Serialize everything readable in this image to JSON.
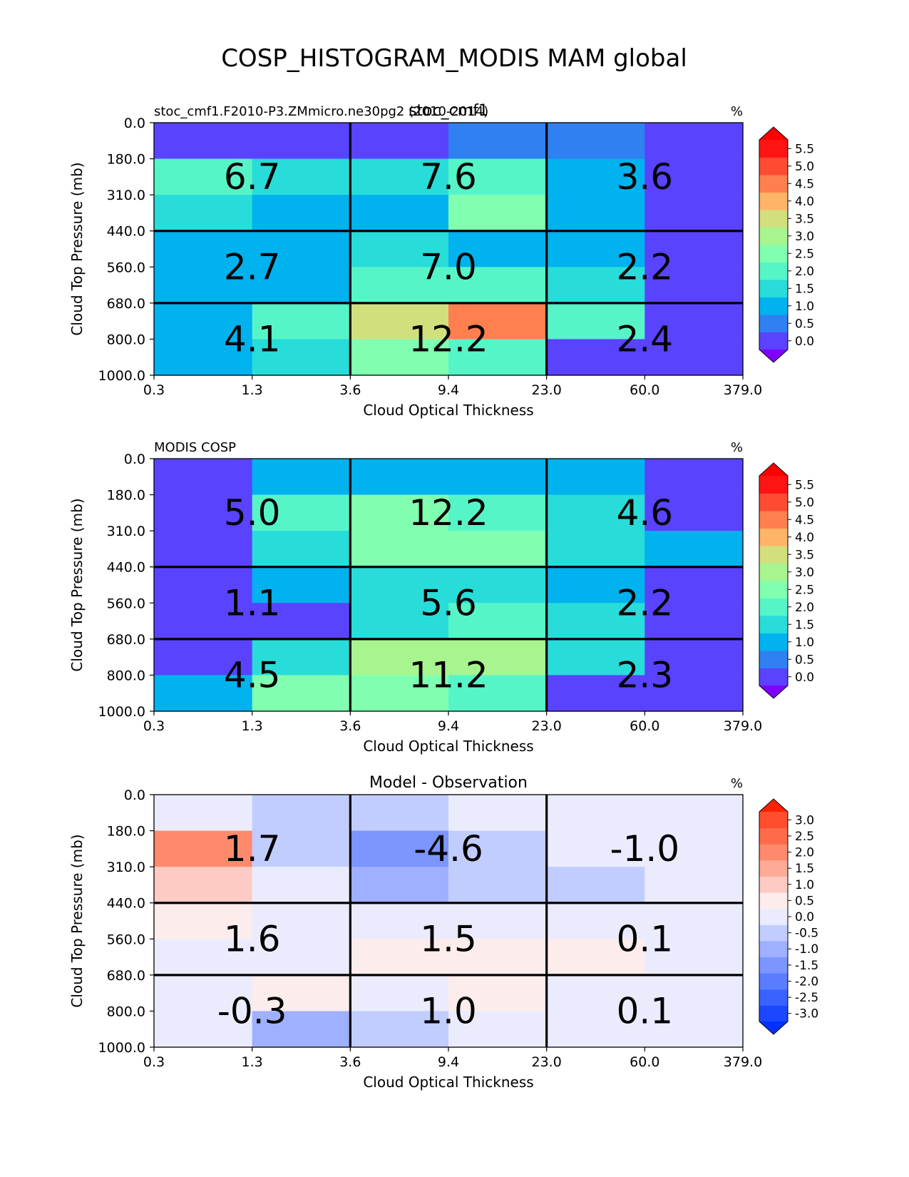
{
  "figure": {
    "title": "COSP_HISTOGRAM_MODIS MAM global"
  },
  "chart_data": [
    {
      "type": "heatmap",
      "title": "stoc_cmf1",
      "left_label": "stoc_cmf1.F2010-P3.ZMmicro.ne30pg2 (2010-2014)",
      "units": "%",
      "xlabel": "Cloud Optical Thickness",
      "ylabel": "Cloud Top Pressure (mb)",
      "x_ticks": [
        "0.3",
        "1.3",
        "3.6",
        "9.4",
        "23.0",
        "60.0",
        "379.0"
      ],
      "y_ticks": [
        "0.0",
        "180.0",
        "310.0",
        "440.0",
        "560.0",
        "680.0",
        "800.0",
        "1000.0"
      ],
      "values": [
        [
          0.0,
          0.0,
          0.0,
          0.7,
          0.6,
          0.0
        ],
        [
          2.1,
          1.4,
          1.3,
          1.9,
          1.2,
          0.0
        ],
        [
          1.4,
          0.8,
          1.2,
          2.3,
          0.8,
          0.0
        ],
        [
          0.8,
          0.8,
          1.3,
          1.2,
          0.8,
          0.0
        ],
        [
          0.8,
          0.8,
          1.9,
          2.2,
          1.3,
          0.0
        ],
        [
          0.8,
          1.8,
          3.7,
          4.3,
          1.9,
          0.0
        ],
        [
          0.8,
          1.3,
          2.3,
          1.8,
          0.0,
          0.0
        ]
      ],
      "box_values": [
        "6.7",
        "7.6",
        "3.6",
        "2.7",
        "7.0",
        "2.2",
        "4.1",
        "12.2",
        "2.4"
      ],
      "colorbar": {
        "ticks": [
          "0.0",
          "0.5",
          "1.0",
          "1.5",
          "2.0",
          "2.5",
          "3.0",
          "3.5",
          "4.0",
          "4.5",
          "5.0",
          "5.5"
        ],
        "levels": [
          -0.25,
          0.25,
          0.75,
          1.25,
          1.75,
          2.25,
          2.75,
          3.25,
          3.75,
          4.25,
          4.75,
          5.25,
          5.75
        ],
        "colors": [
          "#5a43ff",
          "#2f80f0",
          "#00b2ee",
          "#28dcd9",
          "#56f5c8",
          "#80ffb0",
          "#a8f590",
          "#d3df7d",
          "#ffb467",
          "#ff7f4e",
          "#ff4b33",
          "#ff1414"
        ],
        "under_color": "#8000ff",
        "over_color": "#ff0000"
      }
    },
    {
      "type": "heatmap",
      "title": "",
      "left_label": "MODIS COSP",
      "units": "%",
      "xlabel": "Cloud Optical Thickness",
      "ylabel": "Cloud Top Pressure (mb)",
      "x_ticks": [
        "0.3",
        "1.3",
        "3.6",
        "9.4",
        "23.0",
        "60.0",
        "379.0"
      ],
      "y_ticks": [
        "0.0",
        "180.0",
        "310.0",
        "440.0",
        "560.0",
        "680.0",
        "800.0",
        "1000.0"
      ],
      "values": [
        [
          0.0,
          0.8,
          0.8,
          0.8,
          0.8,
          0.0
        ],
        [
          0.0,
          2.1,
          2.5,
          2.1,
          1.4,
          0.0
        ],
        [
          0.0,
          1.4,
          2.6,
          2.6,
          1.4,
          0.8
        ],
        [
          0.0,
          0.8,
          1.3,
          1.3,
          0.8,
          0.0
        ],
        [
          0.0,
          0.0,
          1.3,
          1.8,
          1.3,
          0.0
        ],
        [
          0.0,
          1.3,
          3.2,
          3.2,
          1.4,
          0.0
        ],
        [
          0.8,
          2.6,
          2.5,
          2.0,
          0.0,
          0.0
        ]
      ],
      "box_values": [
        "5.0",
        "12.2",
        "4.6",
        "1.1",
        "5.6",
        "2.2",
        "4.5",
        "11.2",
        "2.3"
      ],
      "colorbar": {
        "ticks": [
          "0.0",
          "0.5",
          "1.0",
          "1.5",
          "2.0",
          "2.5",
          "3.0",
          "3.5",
          "4.0",
          "4.5",
          "5.0",
          "5.5"
        ],
        "levels": [
          -0.25,
          0.25,
          0.75,
          1.25,
          1.75,
          2.25,
          2.75,
          3.25,
          3.75,
          4.25,
          4.75,
          5.25,
          5.75
        ],
        "colors": [
          "#5a43ff",
          "#2f80f0",
          "#00b2ee",
          "#28dcd9",
          "#56f5c8",
          "#80ffb0",
          "#a8f590",
          "#d3df7d",
          "#ffb467",
          "#ff7f4e",
          "#ff4b33",
          "#ff1414"
        ],
        "under_color": "#8000ff",
        "over_color": "#ff0000"
      }
    },
    {
      "type": "heatmap",
      "title": "Model - Observation",
      "left_label": "",
      "units": "%",
      "xlabel": "Cloud Optical Thickness",
      "ylabel": "Cloud Top Pressure (mb)",
      "x_ticks": [
        "0.3",
        "1.3",
        "3.6",
        "9.4",
        "23.0",
        "60.0",
        "379.0"
      ],
      "y_ticks": [
        "0.0",
        "180.0",
        "310.0",
        "440.0",
        "560.0",
        "680.0",
        "800.0",
        "1000.0"
      ],
      "values": [
        [
          0.2,
          -0.6,
          -0.3,
          0.2,
          0.2,
          0.2
        ],
        [
          2.0,
          -0.6,
          -1.4,
          -0.6,
          -0.2,
          -0.2
        ],
        [
          1.2,
          -0.2,
          -1.1,
          -0.6,
          -0.6,
          -0.2
        ],
        [
          0.7,
          0.2,
          -0.2,
          -0.2,
          -0.2,
          -0.2
        ],
        [
          0.2,
          0.2,
          0.7,
          0.7,
          0.7,
          -0.2
        ],
        [
          0.2,
          0.7,
          0.2,
          0.7,
          0.2,
          -0.2
        ],
        [
          -0.2,
          -1.1,
          -0.6,
          0.2,
          0.2,
          -0.2
        ]
      ],
      "box_values": [
        "1.7",
        "-4.6",
        "-1.0",
        "1.6",
        "1.5",
        "0.1",
        "-0.3",
        "1.0",
        "0.1"
      ],
      "colorbar": {
        "ticks": [
          "-3.0",
          "-2.5",
          "-2.0",
          "-1.5",
          "-1.0",
          "-0.5",
          "0.0",
          "0.5",
          "1.0",
          "1.5",
          "2.0",
          "2.5",
          "3.0"
        ],
        "levels": [
          -3.25,
          -2.75,
          -2.25,
          -1.75,
          -1.25,
          -0.75,
          -0.25,
          0.25,
          0.75,
          1.25,
          1.75,
          2.25,
          2.75,
          3.25
        ],
        "colors": [
          "#1a47ff",
          "#3a62ff",
          "#5a7dff",
          "#7d96ff",
          "#9eb0ff",
          "#c2cdff",
          "#eaecfd",
          "#fdecec",
          "#fecbc4",
          "#fdaa96",
          "#fd8a6c",
          "#fe6b4a",
          "#ff4d2e"
        ],
        "under_color": "#0030ff",
        "over_color": "#ff2000"
      }
    }
  ]
}
